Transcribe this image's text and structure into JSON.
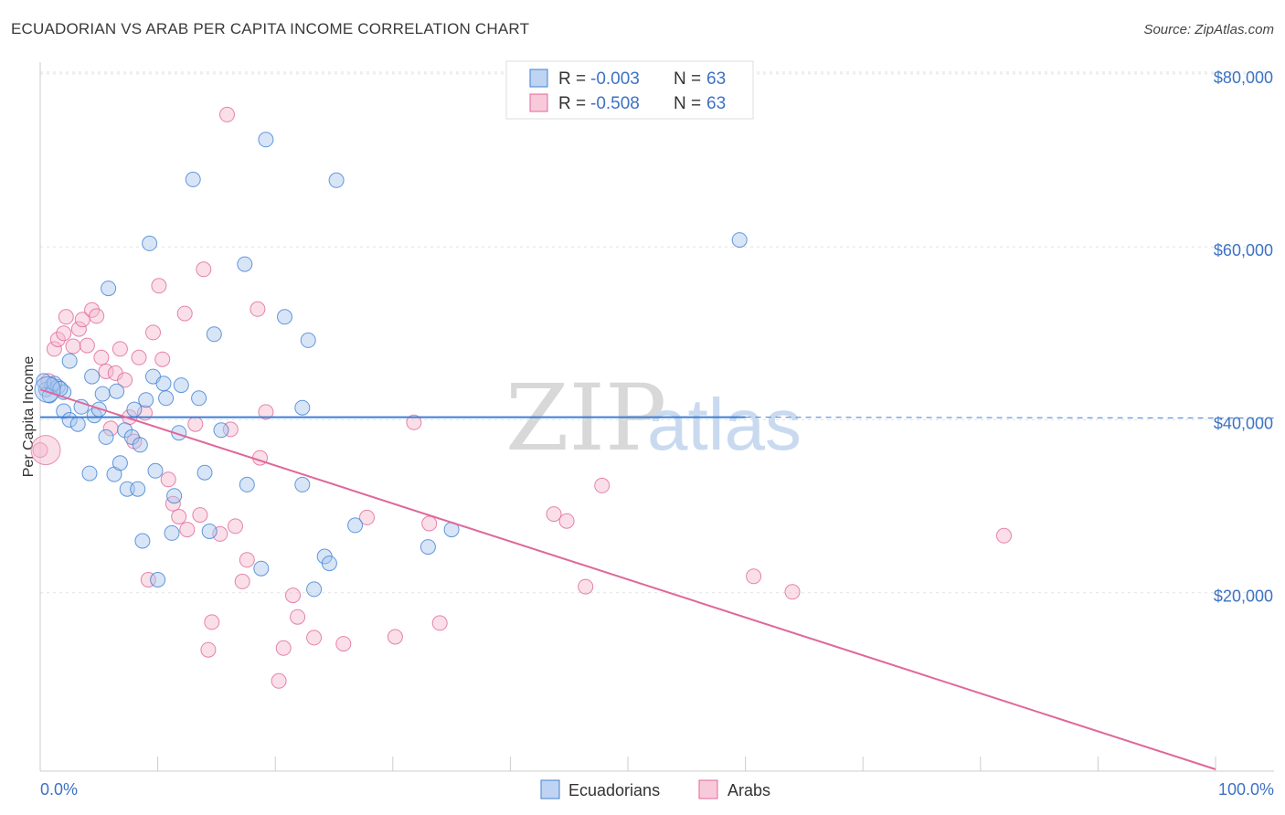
{
  "header": {
    "title": "ECUADORIAN VS ARAB PER CAPITA INCOME CORRELATION CHART",
    "source": "Source: ZipAtlas.com"
  },
  "colors": {
    "blue": "#3f7fd4",
    "blue_fill": "#a9c6ee",
    "pink": "#e0679a",
    "pink_fill": "#f4b8cd",
    "axis_text": "#3d72c4"
  },
  "legend": {
    "rows": [
      {
        "r_label": "R = ",
        "r_value": "-0.003",
        "n_label": "N = ",
        "n_value": "63"
      },
      {
        "r_label": "R = ",
        "r_value": "-0.508",
        "n_label": "N = ",
        "n_value": "63"
      }
    ]
  },
  "bottom_legend": [
    "Ecuadorians",
    "Arabs"
  ],
  "watermark": {
    "zip": "ZIP",
    "atlas": "atlas"
  },
  "chart_data": {
    "type": "scatter",
    "title": "ECUADORIAN VS ARAB PER CAPITA INCOME CORRELATION CHART",
    "ylabel": "Per Capita Income",
    "xlabel": "",
    "x_tick_labels": [
      "0.0%",
      "100.0%"
    ],
    "y_ticks": [
      20000,
      40000,
      60000,
      80000
    ],
    "y_tick_labels": [
      "$20,000",
      "$40,000",
      "$60,000",
      "$80,000"
    ],
    "xlim": [
      0,
      100
    ],
    "ylim": [
      0,
      82000
    ],
    "grid": true,
    "legend_position": "top-center",
    "series": [
      {
        "name": "Ecuadorians",
        "r": -0.003,
        "n": 63,
        "trend": {
          "x0": 0,
          "y0": 40300,
          "x1": 100,
          "y1": 40200,
          "solid_until": 60
        },
        "points": [
          [
            0.5,
            43500
          ],
          [
            1.0,
            44000
          ],
          [
            1.5,
            43800
          ],
          [
            2.0,
            41000
          ],
          [
            2.0,
            43200
          ],
          [
            2.5,
            46800
          ],
          [
            2.5,
            40000
          ],
          [
            3.2,
            39500
          ],
          [
            3.5,
            41500
          ],
          [
            4.2,
            33800
          ],
          [
            4.4,
            45000
          ],
          [
            4.6,
            40500
          ],
          [
            5.0,
            41200
          ],
          [
            5.3,
            43000
          ],
          [
            5.6,
            38000
          ],
          [
            5.8,
            55200
          ],
          [
            6.3,
            33700
          ],
          [
            6.5,
            43300
          ],
          [
            6.8,
            35000
          ],
          [
            7.2,
            38800
          ],
          [
            7.4,
            32000
          ],
          [
            7.8,
            38000
          ],
          [
            8.0,
            41200
          ],
          [
            8.3,
            32000
          ],
          [
            8.5,
            37100
          ],
          [
            8.7,
            26000
          ],
          [
            9.0,
            42300
          ],
          [
            9.3,
            60400
          ],
          [
            9.6,
            45000
          ],
          [
            9.8,
            34100
          ],
          [
            10.0,
            21500
          ],
          [
            10.5,
            44200
          ],
          [
            10.7,
            42500
          ],
          [
            11.2,
            26900
          ],
          [
            11.4,
            31200
          ],
          [
            11.8,
            38500
          ],
          [
            12.0,
            44000
          ],
          [
            13.0,
            67800
          ],
          [
            13.5,
            42500
          ],
          [
            14.0,
            33900
          ],
          [
            14.4,
            27100
          ],
          [
            14.8,
            49900
          ],
          [
            15.4,
            38800
          ],
          [
            17.4,
            58000
          ],
          [
            17.6,
            32500
          ],
          [
            18.8,
            22800
          ],
          [
            19.2,
            72400
          ],
          [
            20.8,
            51900
          ],
          [
            22.3,
            32500
          ],
          [
            22.3,
            41400
          ],
          [
            22.8,
            49200
          ],
          [
            23.3,
            20400
          ],
          [
            24.2,
            24200
          ],
          [
            24.6,
            23400
          ],
          [
            25.2,
            67700
          ],
          [
            26.8,
            27800
          ],
          [
            33.0,
            25300
          ],
          [
            35.0,
            27300
          ],
          [
            59.5,
            60800
          ],
          [
            0.3,
            44500
          ],
          [
            0.8,
            42800
          ],
          [
            1.2,
            44200
          ],
          [
            1.7,
            43600
          ]
        ]
      },
      {
        "name": "Arabs",
        "r": -0.508,
        "n": 63,
        "trend": {
          "x0": 0,
          "y0": 43500,
          "x1": 100,
          "y1": 0,
          "solid_until": 100
        },
        "points": [
          [
            0.0,
            36500
          ],
          [
            0.7,
            44500
          ],
          [
            1.2,
            48200
          ],
          [
            1.5,
            49300
          ],
          [
            2.0,
            50000
          ],
          [
            2.2,
            51900
          ],
          [
            2.8,
            48500
          ],
          [
            3.3,
            50500
          ],
          [
            3.6,
            51600
          ],
          [
            4.0,
            48600
          ],
          [
            4.4,
            52700
          ],
          [
            4.8,
            52000
          ],
          [
            5.2,
            47200
          ],
          [
            5.6,
            45600
          ],
          [
            6.0,
            39000
          ],
          [
            6.4,
            45400
          ],
          [
            6.8,
            48200
          ],
          [
            7.2,
            44600
          ],
          [
            7.6,
            40300
          ],
          [
            8.0,
            37500
          ],
          [
            8.4,
            47200
          ],
          [
            8.9,
            40800
          ],
          [
            9.2,
            21500
          ],
          [
            9.6,
            50100
          ],
          [
            10.1,
            55500
          ],
          [
            10.4,
            47000
          ],
          [
            10.9,
            33100
          ],
          [
            11.3,
            30300
          ],
          [
            11.8,
            28800
          ],
          [
            12.3,
            52300
          ],
          [
            12.5,
            27300
          ],
          [
            13.2,
            39500
          ],
          [
            13.6,
            29000
          ],
          [
            13.9,
            57400
          ],
          [
            14.3,
            13400
          ],
          [
            14.6,
            16600
          ],
          [
            15.3,
            26800
          ],
          [
            15.9,
            75300
          ],
          [
            16.2,
            38900
          ],
          [
            16.6,
            27700
          ],
          [
            17.2,
            21300
          ],
          [
            17.6,
            23800
          ],
          [
            18.5,
            52800
          ],
          [
            18.7,
            35600
          ],
          [
            19.2,
            40900
          ],
          [
            20.3,
            9800
          ],
          [
            20.7,
            13600
          ],
          [
            21.5,
            19700
          ],
          [
            21.9,
            17200
          ],
          [
            23.3,
            14800
          ],
          [
            25.8,
            14100
          ],
          [
            27.8,
            28700
          ],
          [
            30.2,
            14900
          ],
          [
            31.8,
            39700
          ],
          [
            33.1,
            28000
          ],
          [
            34.0,
            16500
          ],
          [
            43.7,
            29100
          ],
          [
            44.8,
            28300
          ],
          [
            46.4,
            20700
          ],
          [
            47.8,
            32400
          ],
          [
            60.7,
            21900
          ],
          [
            64.0,
            20100
          ],
          [
            82.0,
            26600
          ]
        ]
      }
    ]
  }
}
